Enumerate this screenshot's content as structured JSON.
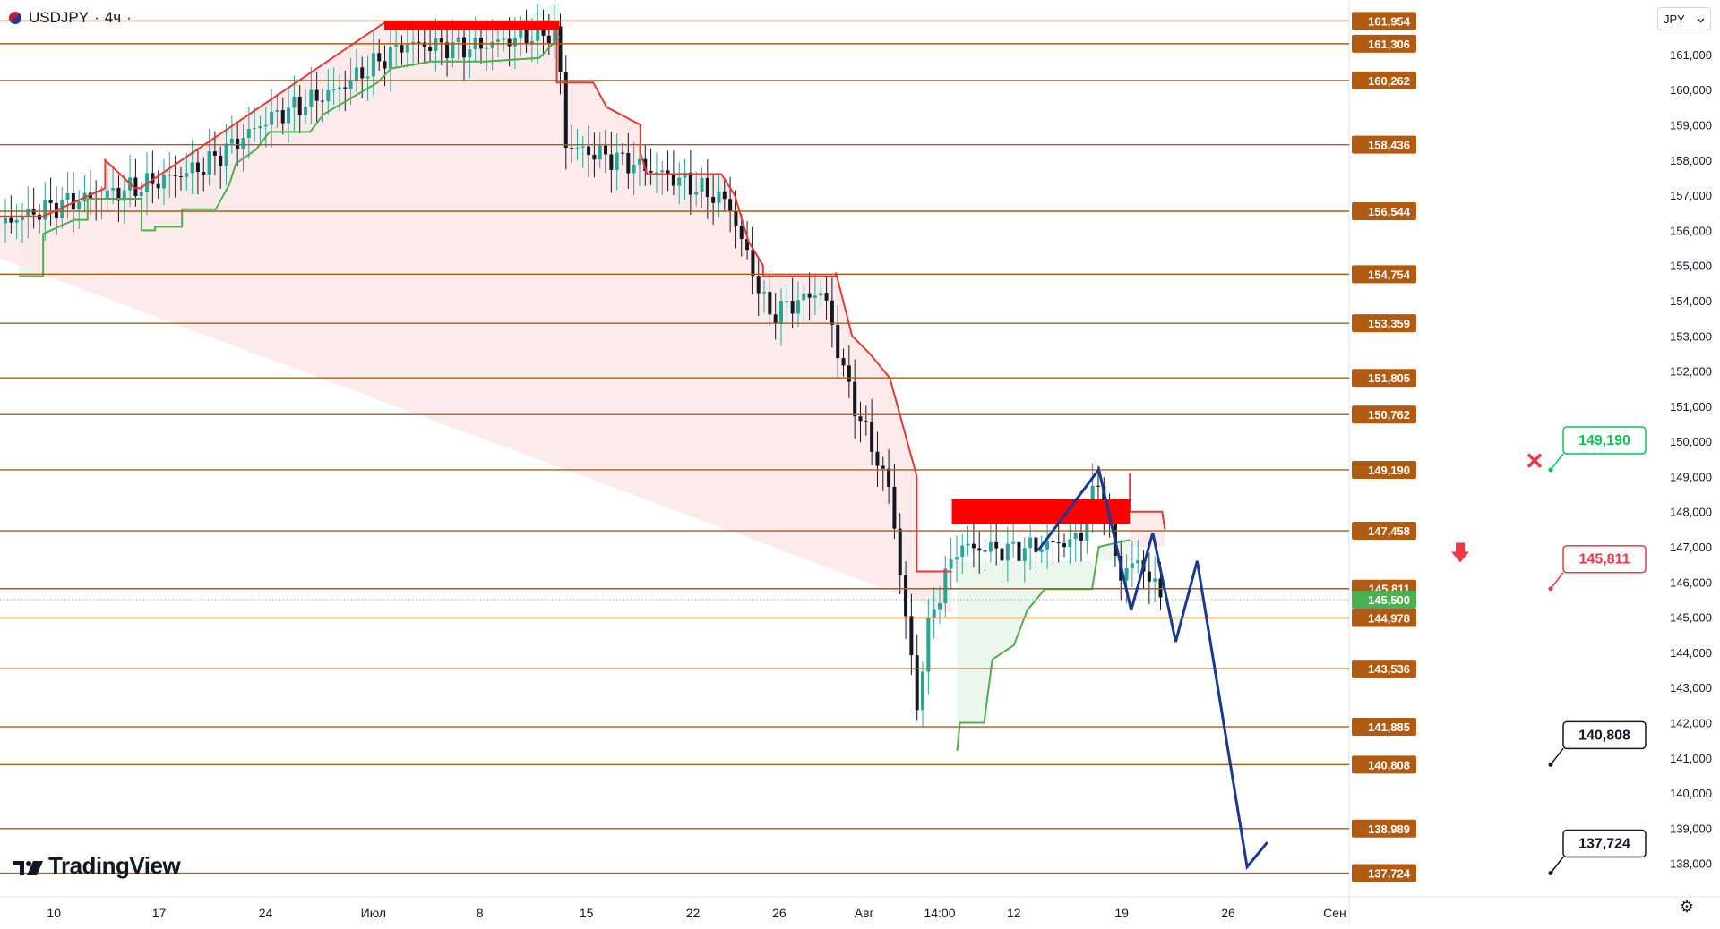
{
  "header": {
    "symbol_label": "USDJPY",
    "interval_label": "4ч",
    "separator": "·"
  },
  "currency_button": {
    "label": "JPY",
    "chevron_icon": "chevron-down-icon"
  },
  "branding": {
    "logo_text": "TradingView",
    "logo_icon": "tradingview-logo-icon"
  },
  "settings_icon": "gear-icon",
  "colors": {
    "level_line": "#b05a12",
    "level_label_bg": "#b05a12",
    "bull_candle": "#26a69a",
    "bear_candle": "#131722",
    "stop_up": "#4caf50",
    "stop_down": "#e53935",
    "stop_up_fill": "#e8f5e9",
    "stop_down_fill": "#fde7e9",
    "zone_red": "#ff0000",
    "projection": "#1a3a8f",
    "current_price_bg": "#4caf50",
    "callout_green": "#00c853",
    "callout_red": "#f23645"
  },
  "chart_data": {
    "type": "candlestick",
    "symbol": "USDJPY",
    "interval": "4ч",
    "currency": "JPY",
    "y_range": [
      137.5,
      162.2
    ],
    "x_axis_labels": [
      "10",
      "17",
      "24",
      "Июл",
      "8",
      "15",
      "22",
      "26",
      "Авг",
      "14:00",
      "12",
      "19",
      "26",
      "Сен"
    ],
    "y_axis_ticks": [
      "161,000",
      "160,000",
      "159,000",
      "158,000",
      "157,000",
      "156,000",
      "155,000",
      "154,000",
      "153,000",
      "152,000",
      "151,000",
      "150,000",
      "149,000",
      "148,000",
      "147,000",
      "146,000",
      "145,000",
      "144,000",
      "143,000",
      "142,000",
      "141,000",
      "140,000",
      "139,000",
      "138,000"
    ],
    "horizontal_levels": [
      {
        "value": 161.954,
        "label": "161,954"
      },
      {
        "value": 161.306,
        "label": "161,306"
      },
      {
        "value": 160.262,
        "label": "160,262"
      },
      {
        "value": 158.436,
        "label": "158,436"
      },
      {
        "value": 156.544,
        "label": "156,544"
      },
      {
        "value": 154.754,
        "label": "154,754"
      },
      {
        "value": 153.359,
        "label": "153,359"
      },
      {
        "value": 151.805,
        "label": "151,805"
      },
      {
        "value": 150.762,
        "label": "150,762"
      },
      {
        "value": 149.19,
        "label": "149,190"
      },
      {
        "value": 147.458,
        "label": "147,458"
      },
      {
        "value": 145.811,
        "label": "145,811"
      },
      {
        "value": 144.978,
        "label": "144,978"
      },
      {
        "value": 143.536,
        "label": "143,536"
      },
      {
        "value": 141.885,
        "label": "141,885"
      },
      {
        "value": 140.808,
        "label": "140,808"
      },
      {
        "value": 138.989,
        "label": "138,989"
      },
      {
        "value": 137.724,
        "label": "137,724"
      }
    ],
    "current_price": {
      "value": 145.5,
      "label": "145,500"
    },
    "resistance_zones": [
      {
        "x_start": 0.285,
        "x_end": 0.415,
        "y_low": 161.7,
        "y_high": 161.95
      },
      {
        "x_start": 0.706,
        "x_end": 0.838,
        "y_low": 147.65,
        "y_high": 148.35
      }
    ],
    "stop_line_up": [
      [
        0.014,
        154.7
      ],
      [
        0.032,
        154.7
      ],
      [
        0.032,
        155.9
      ],
      [
        0.055,
        156.3
      ],
      [
        0.065,
        156.3
      ],
      [
        0.065,
        156.9
      ],
      [
        0.105,
        156.9
      ],
      [
        0.105,
        156.0
      ],
      [
        0.115,
        156.0
      ],
      [
        0.115,
        156.1
      ],
      [
        0.135,
        156.1
      ],
      [
        0.135,
        156.6
      ],
      [
        0.16,
        156.6
      ],
      [
        0.17,
        157.3
      ],
      [
        0.175,
        157.9
      ],
      [
        0.19,
        158.3
      ],
      [
        0.2,
        158.8
      ],
      [
        0.23,
        158.8
      ],
      [
        0.24,
        159.3
      ],
      [
        0.28,
        160.2
      ],
      [
        0.29,
        160.6
      ],
      [
        0.32,
        160.8
      ],
      [
        0.36,
        160.8
      ],
      [
        0.4,
        160.9
      ],
      [
        0.415,
        161.5
      ]
    ],
    "stop_line_down": [
      [
        0.0,
        156.4
      ],
      [
        0.032,
        156.4
      ],
      [
        0.078,
        157.2
      ],
      [
        0.078,
        158.0
      ],
      [
        0.1,
        157.2
      ],
      [
        0.104,
        157.2
      ],
      [
        0.285,
        161.9
      ],
      [
        0.413,
        161.9
      ],
      [
        0.413,
        160.2
      ],
      [
        0.44,
        160.2
      ],
      [
        0.45,
        159.5
      ],
      [
        0.475,
        159.0
      ],
      [
        0.475,
        158.2
      ],
      [
        0.48,
        157.6
      ],
      [
        0.535,
        157.6
      ],
      [
        0.545,
        157.0
      ],
      [
        0.555,
        155.7
      ],
      [
        0.566,
        155.0
      ],
      [
        0.566,
        154.7
      ],
      [
        0.62,
        154.7
      ],
      [
        0.62,
        154.8
      ],
      [
        0.632,
        153.0
      ],
      [
        0.645,
        152.5
      ],
      [
        0.66,
        151.8
      ],
      [
        0.68,
        149.0
      ],
      [
        0.68,
        146.3
      ],
      [
        0.706,
        146.3
      ]
    ],
    "stop_line_up_2": [
      [
        0.71,
        141.2
      ],
      [
        0.712,
        142.0
      ],
      [
        0.73,
        142.0
      ],
      [
        0.736,
        143.8
      ],
      [
        0.752,
        144.2
      ],
      [
        0.762,
        145.2
      ],
      [
        0.775,
        145.8
      ],
      [
        0.81,
        145.8
      ],
      [
        0.815,
        147.0
      ],
      [
        0.838,
        147.2
      ]
    ],
    "stop_line_down_2": [
      [
        0.838,
        149.1
      ],
      [
        0.838,
        148.0
      ],
      [
        0.862,
        148.0
      ],
      [
        0.864,
        147.5
      ]
    ],
    "projection_path": [
      [
        0.77,
        146.9
      ],
      [
        0.815,
        149.2
      ],
      [
        0.839,
        145.2
      ],
      [
        0.855,
        147.4
      ],
      [
        0.872,
        144.3
      ],
      [
        0.888,
        146.6
      ],
      [
        0.925,
        137.9
      ],
      [
        0.94,
        138.6
      ]
    ],
    "callouts": [
      {
        "label": "149,190",
        "value": 149.19,
        "color": "green"
      },
      {
        "label": "145,811",
        "value": 145.811,
        "color": "red"
      },
      {
        "label": "140,808",
        "value": 140.808,
        "color": "black"
      },
      {
        "label": "137,724",
        "value": 137.724,
        "color": "black"
      }
    ],
    "markers": [
      {
        "type": "cross",
        "value": 149.2,
        "color": "red"
      },
      {
        "type": "arrow-down",
        "value": 146.3,
        "color": "red"
      }
    ]
  }
}
